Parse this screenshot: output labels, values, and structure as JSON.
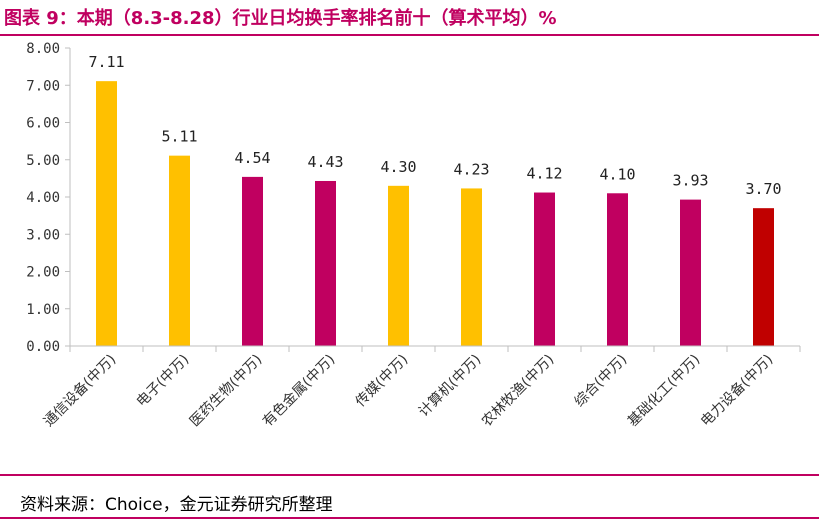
{
  "title": "图表 9：本期（8.3-8.28）行业日均换手率排名前十（算术平均）%",
  "source": "资料来源：Choice，金元证券研究所整理",
  "colors": {
    "title": "#c00060",
    "yellow": "#ffc000",
    "magenta": "#c00060",
    "red": "#c00000",
    "axis": "#bfbfbf"
  },
  "chart_data": {
    "type": "bar",
    "categories": [
      "通信设备(中万)",
      "电子(中万)",
      "医药生物(中万)",
      "有色金属(中万)",
      "传媒(中万)",
      "计算机(中万)",
      "农林牧渔(中万)",
      "综合(中万)",
      "基础化工(中万)",
      "电力设备(中万)"
    ],
    "values": [
      7.11,
      5.11,
      4.54,
      4.43,
      4.3,
      4.23,
      4.12,
      4.1,
      3.93,
      3.7
    ],
    "value_labels": [
      "7.11",
      "5.11",
      "4.54",
      "4.43",
      "4.30",
      "4.23",
      "4.12",
      "4.10",
      "3.93",
      "3.70"
    ],
    "bar_colors": [
      "yellow",
      "yellow",
      "magenta",
      "magenta",
      "yellow",
      "yellow",
      "magenta",
      "magenta",
      "magenta",
      "red"
    ],
    "yticks": [
      "0.00",
      "1.00",
      "2.00",
      "3.00",
      "4.00",
      "5.00",
      "6.00",
      "7.00",
      "8.00"
    ],
    "ylim": [
      0,
      8
    ],
    "grid": false,
    "legend": "none"
  }
}
